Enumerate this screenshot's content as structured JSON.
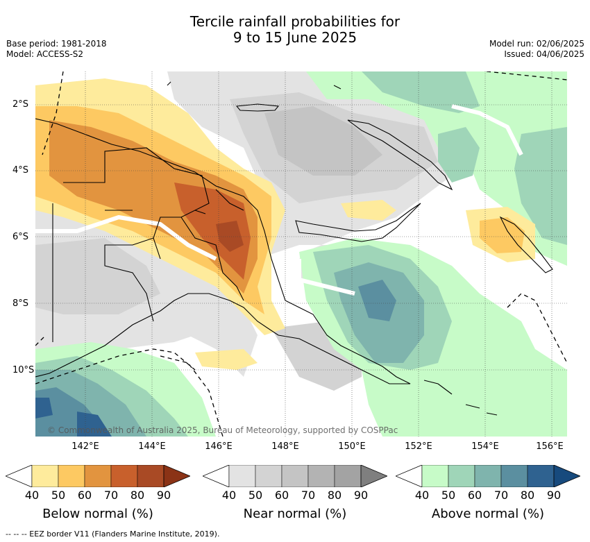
{
  "title_line1": "Tercile rainfall probabilities for",
  "title_line2": "9 to 15 June 2025",
  "meta_left": {
    "base_period": "Base period: 1981-2018",
    "model": "Model: ACCESS-S2"
  },
  "meta_right": {
    "model_run": "Model run: 02/06/2025",
    "issued": "Issued: 04/06/2025"
  },
  "copyright": "© Commonwealth of Australia 2025, Bureau of Meteorology, supported by COSPPac",
  "x_ticks": [
    "142°E",
    "144°E",
    "146°E",
    "148°E",
    "150°E",
    "152°E",
    "154°E",
    "156°E"
  ],
  "y_ticks": [
    "2°S",
    "4°S",
    "6°S",
    "8°S",
    "10°S"
  ],
  "colorbars": [
    {
      "label": "Below normal (%)",
      "colors": [
        "#ffffff",
        "#feeb9c",
        "#fdc962",
        "#e2943f",
        "#c8602c",
        "#a94a25",
        "#8b3316"
      ],
      "ticks": [
        "40",
        "50",
        "60",
        "70",
        "80",
        "90"
      ]
    },
    {
      "label": "Near normal (%)",
      "colors": [
        "#ffffff",
        "#e3e3e3",
        "#d3d3d3",
        "#c4c4c4",
        "#b3b3b3",
        "#a3a3a3",
        "#7f7f7f"
      ],
      "ticks": [
        "40",
        "50",
        "60",
        "70",
        "80",
        "90"
      ]
    },
    {
      "label": "Above normal (%)",
      "colors": [
        "#ffffff",
        "#c7fbc8",
        "#9fd5b8",
        "#7fb4ad",
        "#5b8fa0",
        "#2f6290",
        "#174a7d"
      ],
      "ticks": [
        "40",
        "50",
        "60",
        "70",
        "80",
        "90"
      ]
    }
  ],
  "footnote": "-- -- -- EEZ border V11 (Flanders Marine Institute, 2019)."
}
